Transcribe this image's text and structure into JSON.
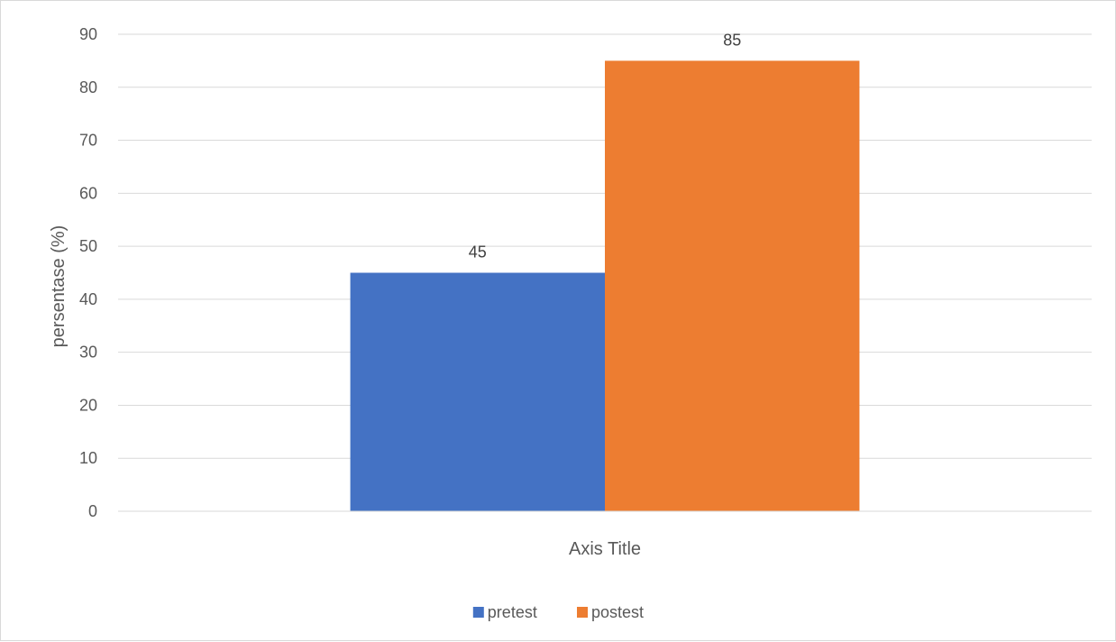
{
  "chart_data": {
    "type": "bar",
    "categories": [
      ""
    ],
    "series": [
      {
        "name": "pretest",
        "values": [
          45
        ],
        "color": "#4472C4"
      },
      {
        "name": "postest",
        "values": [
          85
        ],
        "color": "#ED7D31"
      }
    ],
    "title": "",
    "xlabel": "Axis Title",
    "ylabel": "persentase (%)",
    "ylim": [
      0,
      90
    ],
    "yticks": [
      "0",
      "10",
      "20",
      "30",
      "40",
      "50",
      "60",
      "70",
      "80",
      "90"
    ],
    "grid": true,
    "legend": "bottom",
    "data_labels": true
  }
}
